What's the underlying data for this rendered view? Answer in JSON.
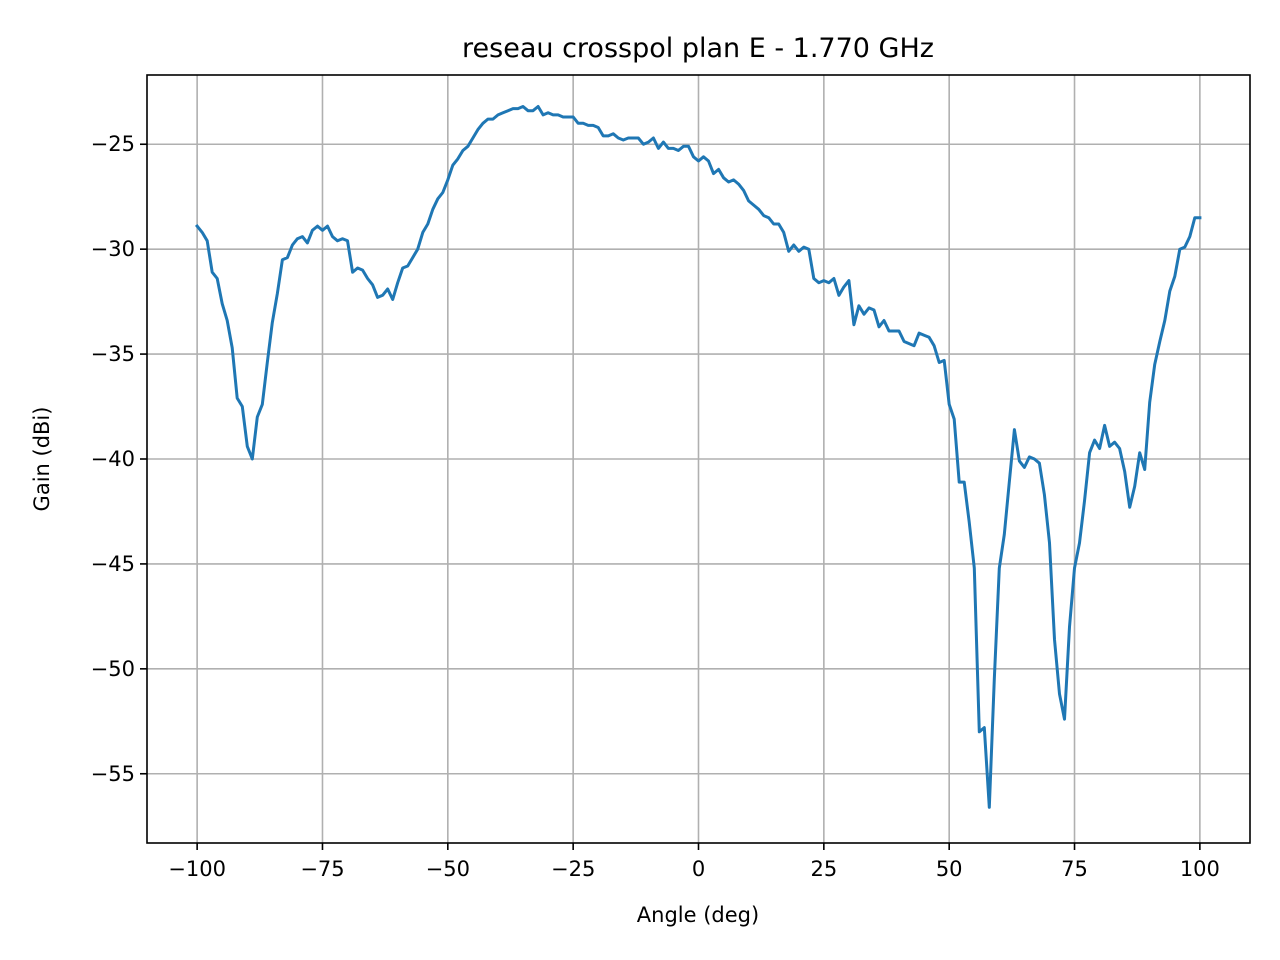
{
  "chart_data": {
    "type": "line",
    "title": "reseau crosspol plan E - 1.770 GHz",
    "xlabel": "Angle (deg)",
    "ylabel": "Gain (dBi)",
    "xlim": [
      -110,
      110
    ],
    "ylim": [
      -58.3,
      -21.7
    ],
    "x_ticks": [
      -100,
      -75,
      -50,
      -25,
      0,
      25,
      50,
      75,
      100
    ],
    "x_tick_labels": [
      "−100",
      "−75",
      "−50",
      "−25",
      "0",
      "25",
      "50",
      "75",
      "100"
    ],
    "y_ticks": [
      -25,
      -30,
      -35,
      -40,
      -45,
      -50,
      -55
    ],
    "y_tick_labels": [
      "−25",
      "−30",
      "−35",
      "−40",
      "−45",
      "−50",
      "−55"
    ],
    "grid": true,
    "legend": "none",
    "color": "#1f77b4",
    "series": [
      {
        "x": [
          -100,
          -99,
          -98,
          -97,
          -96,
          -95,
          -94,
          -93,
          -92,
          -91,
          -90,
          -89,
          -88,
          -87,
          -86,
          -85,
          -84,
          -83,
          -82,
          -81,
          -80,
          -79,
          -78,
          -77,
          -76,
          -75,
          -74,
          -73,
          -72,
          -71,
          -70,
          -69,
          -68,
          -67,
          -66,
          -65,
          -64,
          -63,
          -62,
          -61,
          -60,
          -59,
          -58,
          -57,
          -56,
          -55,
          -54,
          -53,
          -52,
          -51,
          -50,
          -49,
          -48,
          -47,
          -46,
          -45,
          -44,
          -43,
          -42,
          -41,
          -40,
          -39,
          -38,
          -37,
          -36,
          -35,
          -34,
          -33,
          -32,
          -31,
          -30,
          -29,
          -28,
          -27,
          -26,
          -25,
          -24,
          -23,
          -22,
          -21,
          -20,
          -19,
          -18,
          -17,
          -16,
          -15,
          -14,
          -13,
          -12,
          -11,
          -10,
          -9,
          -8,
          -7,
          -6,
          -5,
          -4,
          -3,
          -2,
          -1,
          0,
          1,
          2,
          3,
          4,
          5,
          6,
          7,
          8,
          9,
          10,
          11,
          12,
          13,
          14,
          15,
          16,
          17,
          18,
          19,
          20,
          21,
          22,
          23,
          24,
          25,
          26,
          27,
          28,
          29,
          30,
          31,
          32,
          33,
          34,
          35,
          36,
          37,
          38,
          39,
          40,
          41,
          42,
          43,
          44,
          45,
          46,
          47,
          48,
          49,
          50,
          51,
          52,
          53,
          54,
          55,
          56,
          57,
          58,
          59,
          60,
          61,
          62,
          63,
          64,
          65,
          66,
          67,
          68,
          69,
          70,
          71,
          72,
          73,
          74,
          75,
          76,
          77,
          78,
          79,
          80,
          81,
          82,
          83,
          84,
          85,
          86,
          87,
          88,
          89,
          90,
          91,
          92,
          93,
          94,
          95,
          96,
          97,
          98,
          99,
          100
        ],
        "y": [
          -28.9,
          -29.2,
          -29.6,
          -31.1,
          -31.4,
          -32.6,
          -33.4,
          -34.7,
          -37.1,
          -37.5,
          -39.4,
          -40.0,
          -38.0,
          -37.4,
          -35.4,
          -33.5,
          -32.1,
          -30.5,
          -30.4,
          -29.8,
          -29.5,
          -29.4,
          -29.7,
          -29.1,
          -28.9,
          -29.1,
          -28.9,
          -29.4,
          -29.6,
          -29.5,
          -29.6,
          -31.1,
          -30.9,
          -31.0,
          -31.4,
          -31.7,
          -32.3,
          -32.2,
          -31.9,
          -32.4,
          -31.6,
          -30.9,
          -30.8,
          -30.4,
          -30.0,
          -29.2,
          -28.8,
          -28.1,
          -27.6,
          -27.3,
          -26.7,
          -26.0,
          -25.7,
          -25.3,
          -25.1,
          -24.7,
          -24.3,
          -24.0,
          -23.8,
          -23.8,
          -23.6,
          -23.5,
          -23.4,
          -23.3,
          -23.3,
          -23.2,
          -23.4,
          -23.4,
          -23.2,
          -23.6,
          -23.5,
          -23.6,
          -23.6,
          -23.7,
          -23.7,
          -23.7,
          -24.0,
          -24.0,
          -24.1,
          -24.1,
          -24.2,
          -24.6,
          -24.6,
          -24.5,
          -24.7,
          -24.8,
          -24.7,
          -24.7,
          -24.7,
          -25.0,
          -24.9,
          -24.7,
          -25.2,
          -24.9,
          -25.2,
          -25.2,
          -25.3,
          -25.1,
          -25.1,
          -25.6,
          -25.8,
          -25.6,
          -25.8,
          -26.4,
          -26.2,
          -26.6,
          -26.8,
          -26.7,
          -26.9,
          -27.2,
          -27.7,
          -27.9,
          -28.1,
          -28.4,
          -28.5,
          -28.8,
          -28.8,
          -29.2,
          -30.1,
          -29.8,
          -30.1,
          -29.9,
          -30.0,
          -31.4,
          -31.6,
          -31.5,
          -31.6,
          -31.4,
          -32.2,
          -31.8,
          -31.5,
          -33.6,
          -32.7,
          -33.1,
          -32.8,
          -32.9,
          -33.7,
          -33.4,
          -33.9,
          -33.9,
          -33.9,
          -34.4,
          -34.5,
          -34.6,
          -34.0,
          -34.1,
          -34.2,
          -34.6,
          -35.4,
          -35.3,
          -37.4,
          -38.1,
          -41.1,
          -41.1,
          -43.0,
          -45.2,
          -53.0,
          -52.8,
          -56.6,
          -50.5,
          -45.2,
          -43.6,
          -41.1,
          -38.6,
          -40.1,
          -40.4,
          -39.9,
          -40.0,
          -40.2,
          -41.7,
          -44.0,
          -48.6,
          -51.2,
          -52.4,
          -48.0,
          -45.2,
          -44.0,
          -42.0,
          -39.7,
          -39.1,
          -39.5,
          -38.4,
          -39.4,
          -39.2,
          -39.5,
          -40.6,
          -42.3,
          -41.3,
          -39.7,
          -40.5,
          -37.3,
          -35.5,
          -34.4,
          -33.4,
          -32.0,
          -31.3,
          -30.0,
          -29.9,
          -29.4,
          -28.5,
          -28.5
        ]
      }
    ]
  }
}
